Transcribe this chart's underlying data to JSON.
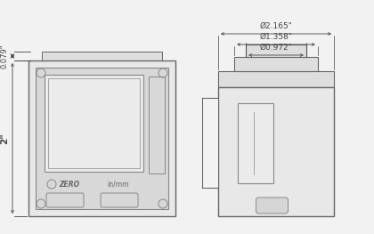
{
  "bg_color": "#f2f2f2",
  "line_color": "#888888",
  "line_color2": "#666666",
  "dim_color": "#444444",
  "fill_body": "#e8e8e8",
  "fill_inner": "#d8d8d8",
  "fill_screen": "#ebebeb",
  "fill_tab": "#dedede",
  "dim_2inch_label": "2\"",
  "dim_079_label": "0.079\"",
  "dim_2165_label": "Ø2.165\"",
  "dim_1358_label": "Ø1.358\"",
  "dim_0972_label": "Ø0.972\""
}
